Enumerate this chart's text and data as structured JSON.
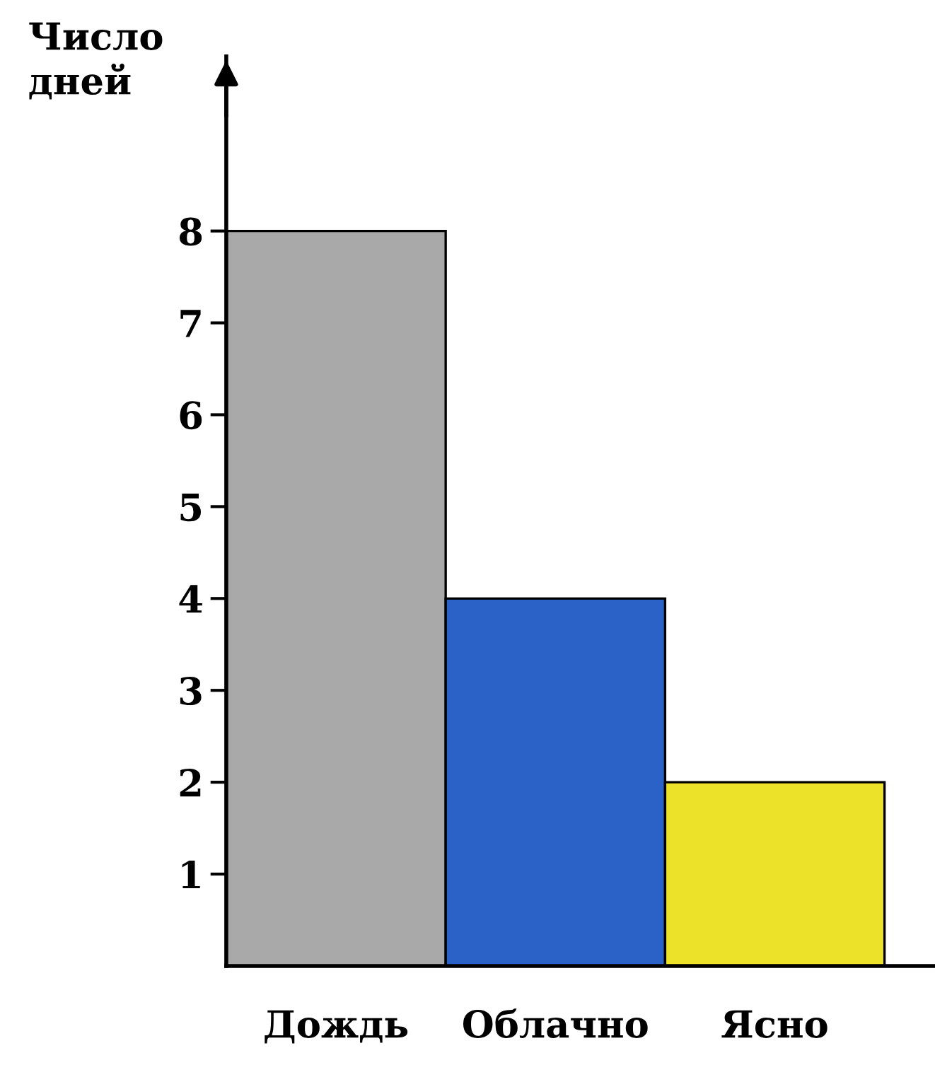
{
  "chart_data": {
    "type": "bar",
    "ylabel": "Число дней",
    "categories": [
      "Дождь",
      "Облачно",
      "Ясно"
    ],
    "values": [
      8,
      4,
      2
    ],
    "colors": [
      "#a9a9a9",
      "#2b62c8",
      "#ece22a"
    ],
    "ylim": [
      0,
      9.9
    ],
    "yticks": [
      1,
      2,
      3,
      4,
      5,
      6,
      7,
      8
    ],
    "grid": false
  }
}
